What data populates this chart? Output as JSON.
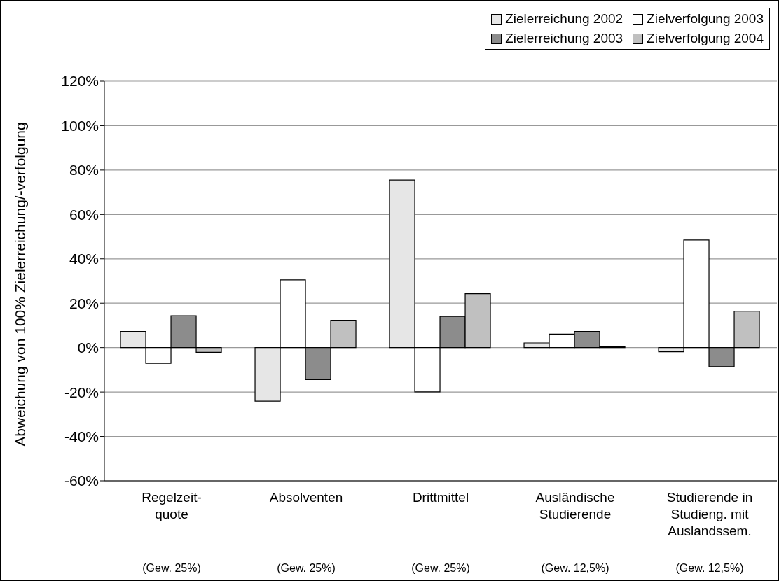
{
  "chart_data": {
    "type": "bar",
    "ylabel": "Abweichung von 100% Zielerreichung/-verfolgung",
    "categories": [
      "Regelzeit-\nquote\n(Gew. 25%)",
      "Absolventen\n(Gew. 25%)",
      "Drittmittel\n(Gew. 25%)",
      "Ausländische\nStudierende\n(Gew. 12,5%)",
      "Studierende in\nStudieng. mit\nAuslandssem.\n(Gew. 12,5%)"
    ],
    "series": [
      {
        "name": "Zielerreichung 2002",
        "color": "#e6e6e6",
        "values": [
          7.3,
          -24.1,
          75.5,
          2.1,
          -1.9
        ]
      },
      {
        "name": "Zielverfolgung 2003",
        "color": "#ffffff",
        "values": [
          -7.1,
          30.5,
          -19.9,
          6.1,
          48.5
        ]
      },
      {
        "name": "Zielerreichung 2003",
        "color": "#8c8c8c",
        "values": [
          14.4,
          -14.4,
          14,
          7.3,
          -8.6
        ]
      },
      {
        "name": "Zielverfolgung 2004",
        "color": "#c0c0c0",
        "values": [
          -2.1,
          12.3,
          24.3,
          0.3,
          16.4
        ]
      }
    ],
    "ylim": [
      -60,
      120
    ],
    "yticks": [
      {
        "value": -60,
        "label": "-60%"
      },
      {
        "value": -40,
        "label": "-40%"
      },
      {
        "value": -20,
        "label": "-20%"
      },
      {
        "value": 0,
        "label": "0%"
      },
      {
        "value": 20,
        "label": "20%"
      },
      {
        "value": 40,
        "label": "40%"
      },
      {
        "value": 60,
        "label": "60%"
      },
      {
        "value": 80,
        "label": "80%"
      },
      {
        "value": 100,
        "label": "100%"
      },
      {
        "value": 120,
        "label": "120%"
      }
    ],
    "grid": "y",
    "legend": "top right"
  }
}
